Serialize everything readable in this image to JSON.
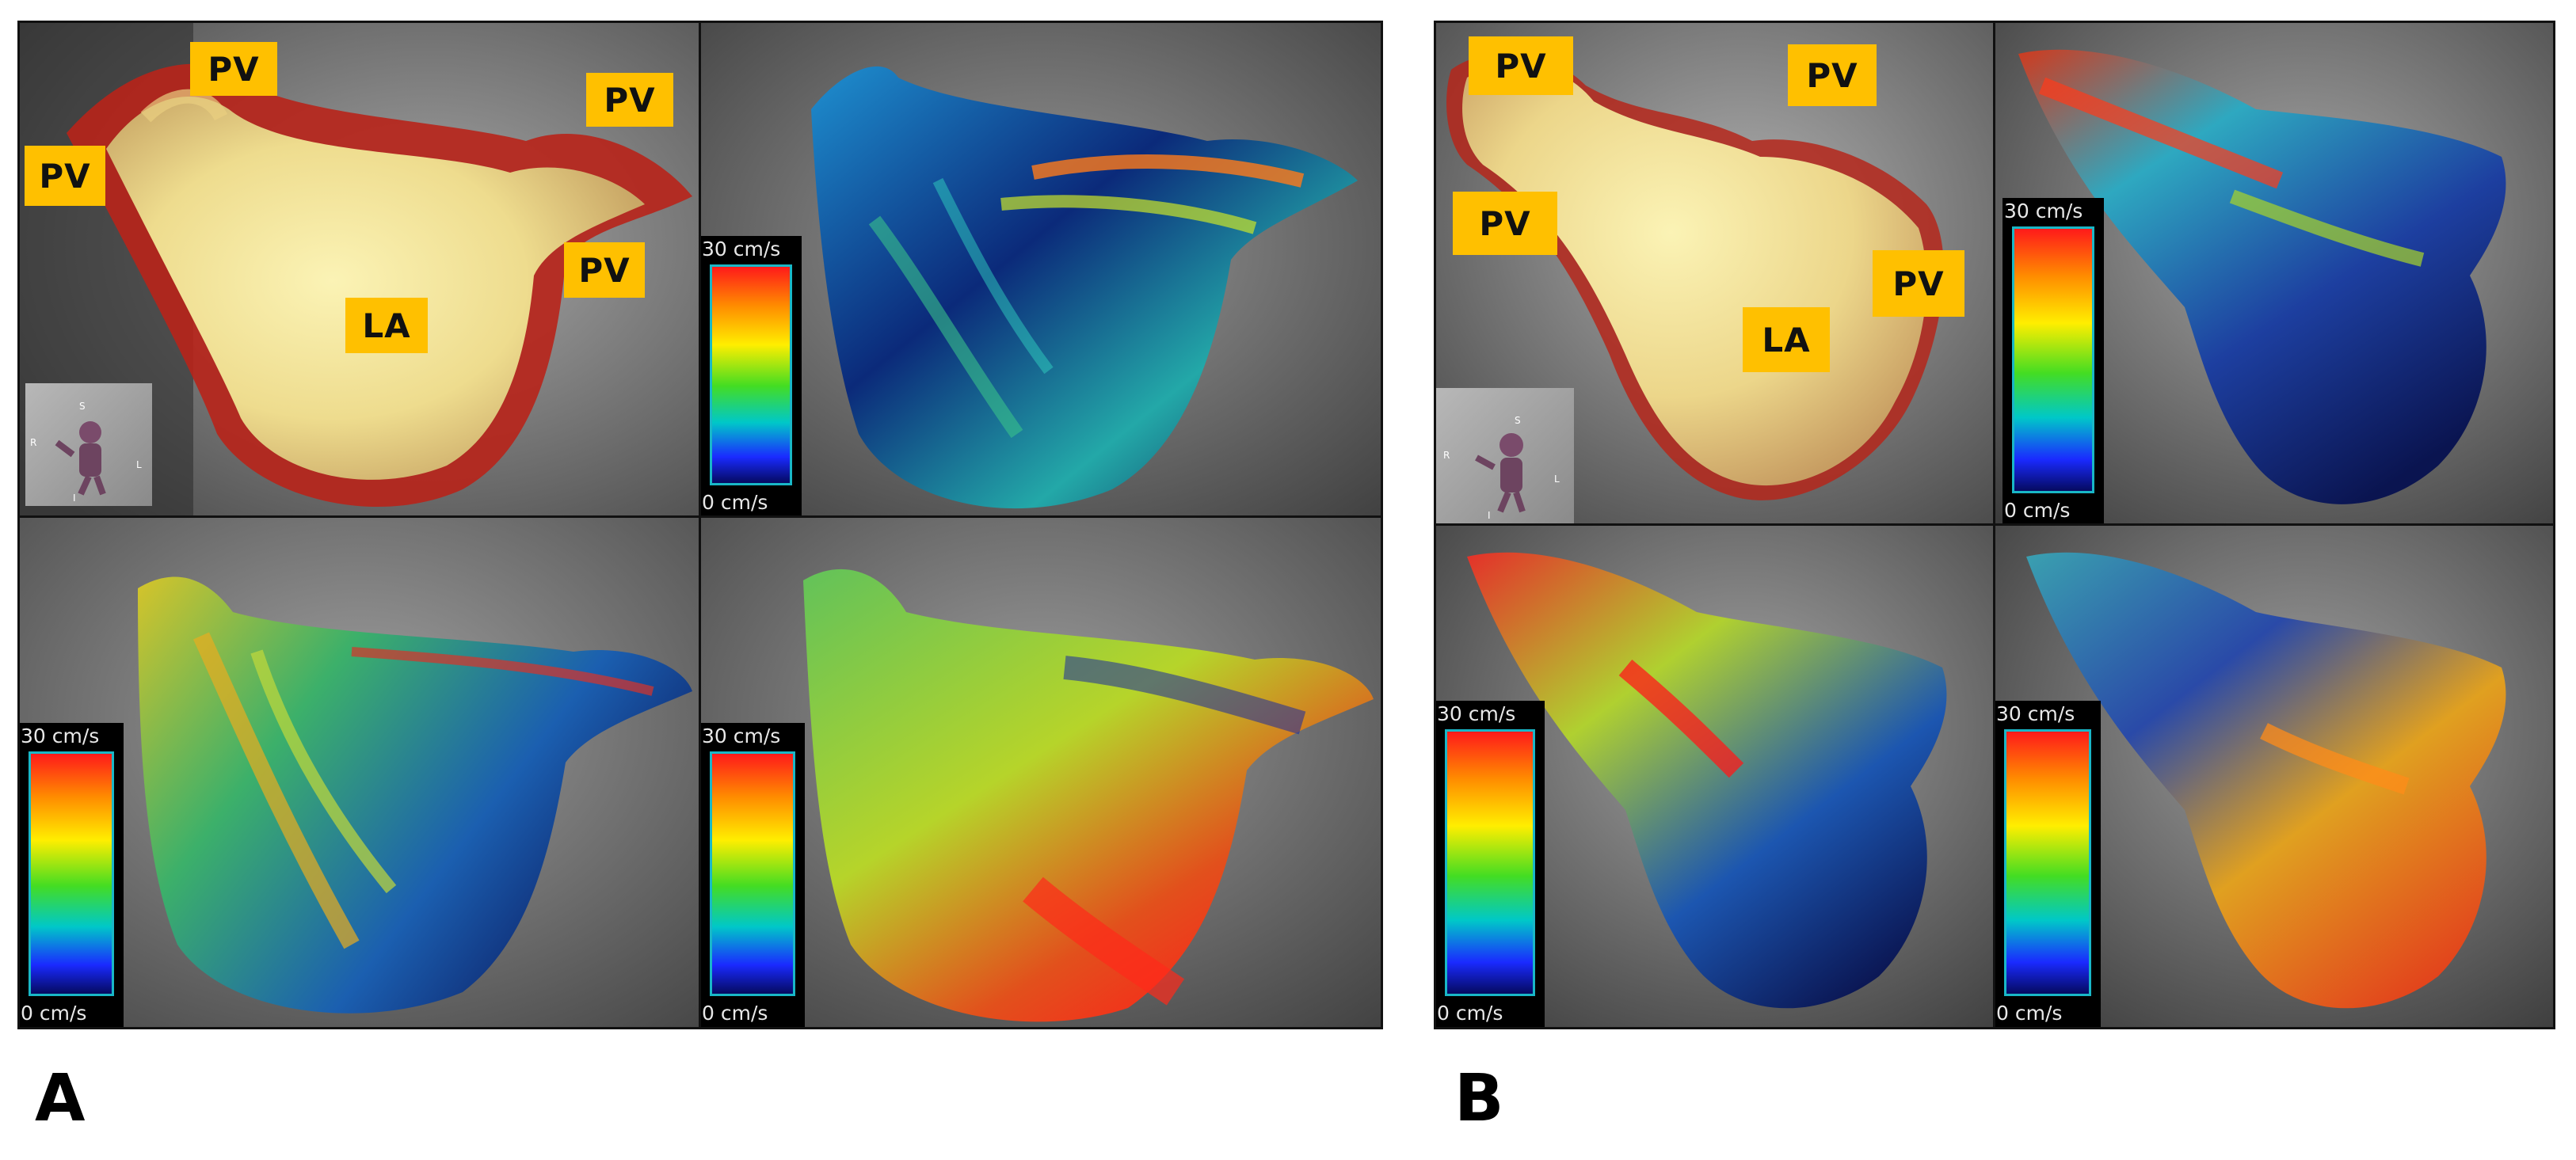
{
  "panel_letters": {
    "a": "A",
    "b": "B"
  },
  "anatomy_labels": {
    "pv": "PV",
    "la": "LA"
  },
  "scale": {
    "max_label": "30 cm/s",
    "min_label": "0 cm/s"
  },
  "orientation_marker": {
    "s": "S",
    "r": "R",
    "l": "L",
    "i": "I"
  },
  "colors": {
    "label_bg": "#ffc000",
    "velocity_high": "#ff1a1a",
    "velocity_low": "#050a60",
    "scale_border": "#19b7c7"
  }
}
